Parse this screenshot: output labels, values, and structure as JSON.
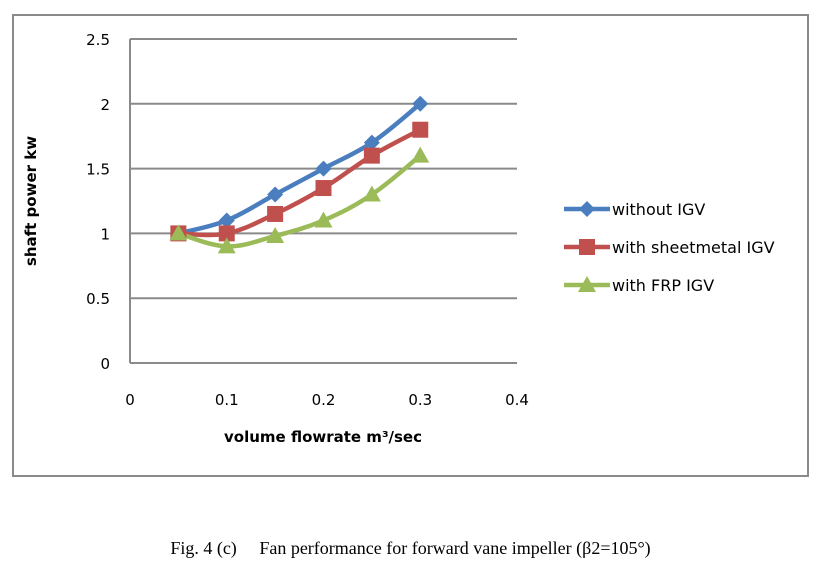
{
  "chart_data": {
    "type": "line",
    "title": "",
    "xlabel": "volume flowrate m³/sec",
    "ylabel": "shaft power kw",
    "xlim": [
      0,
      0.4
    ],
    "ylim": [
      0,
      2.5
    ],
    "xticks": [
      0,
      0.1,
      0.2,
      0.3,
      0.4
    ],
    "xtick_labels": [
      "0",
      "0.1",
      "0.2",
      "0.3",
      "0.4"
    ],
    "yticks": [
      0,
      0.5,
      1,
      1.5,
      2,
      2.5
    ],
    "ytick_labels": [
      "0",
      "0.5",
      "1",
      "1.5",
      "2",
      "2.5"
    ],
    "grid": "horizontal",
    "legend_position": "right",
    "x": [
      0.05,
      0.1,
      0.15,
      0.2,
      0.25,
      0.3
    ],
    "series": [
      {
        "name": "without IGV",
        "marker": "diamond",
        "color": "#4a7ebf",
        "values": [
          1.0,
          1.1,
          1.3,
          1.5,
          1.7,
          2.0
        ]
      },
      {
        "name": "with sheetmetal IGV",
        "marker": "square",
        "color": "#c0504d",
        "values": [
          1.0,
          1.0,
          1.15,
          1.35,
          1.6,
          1.8
        ]
      },
      {
        "name": "with FRP IGV",
        "marker": "triangle",
        "color": "#9bbb59",
        "values": [
          1.0,
          0.9,
          0.98,
          1.1,
          1.3,
          1.6
        ]
      }
    ]
  },
  "caption": {
    "label": "Fig. 4 (c)",
    "text": "Fan performance for forward vane impeller (β2=105°)"
  }
}
